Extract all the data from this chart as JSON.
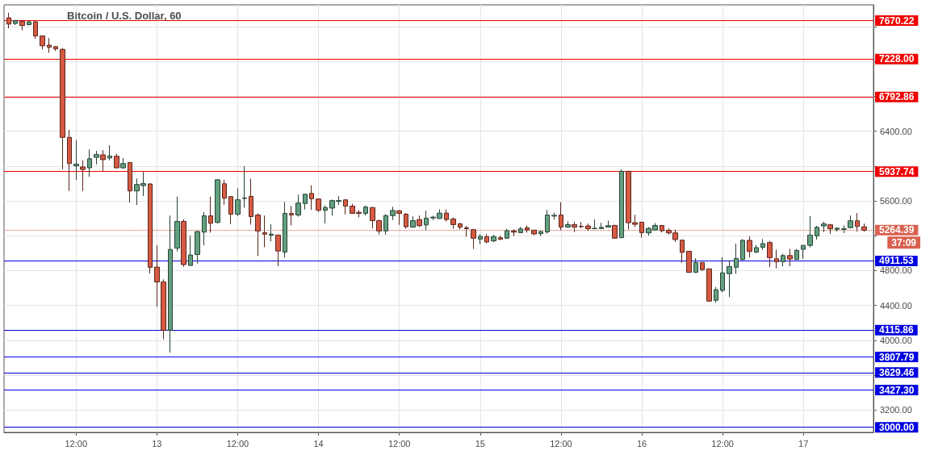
{
  "chart_data": {
    "type": "candlestick",
    "title": "Bitcoin / U.S. Dollar, 60",
    "x": [
      "--03-12T02:00",
      "--03-12T03:00",
      "--03-12T04:00",
      "--03-12T05:00",
      "--03-12T06:00",
      "--03-12T07:00",
      "--03-12T08:00",
      "--03-12T09:00",
      "--03-12T10:00",
      "--03-12T11:00",
      "--03-12T12:00",
      "--03-12T13:00",
      "--03-12T14:00",
      "--03-12T15:00",
      "--03-12T16:00",
      "--03-12T17:00",
      "--03-12T18:00",
      "--03-12T19:00",
      "--03-12T20:00",
      "--03-12T21:00",
      "--03-12T22:00",
      "--03-12T23:00",
      "--03-13T00:00",
      "--03-13T01:00",
      "--03-13T02:00",
      "--03-13T03:00",
      "--03-13T04:00",
      "--03-13T05:00",
      "--03-13T06:00",
      "--03-13T07:00",
      "--03-13T08:00",
      "--03-13T09:00",
      "--03-13T10:00",
      "--03-13T11:00",
      "--03-13T12:00",
      "--03-13T13:00",
      "--03-13T14:00",
      "--03-13T15:00",
      "--03-13T16:00",
      "--03-13T17:00",
      "--03-13T18:00",
      "--03-13T19:00",
      "--03-13T20:00",
      "--03-13T21:00",
      "--03-13T22:00",
      "--03-13T23:00",
      "--03-14T00:00",
      "--03-14T01:00",
      "--03-14T02:00",
      "--03-14T03:00",
      "--03-14T04:00",
      "--03-14T05:00",
      "--03-14T06:00",
      "--03-14T07:00",
      "--03-14T08:00",
      "--03-14T09:00",
      "--03-14T10:00",
      "--03-14T11:00",
      "--03-14T12:00",
      "--03-14T13:00",
      "--03-14T14:00",
      "--03-14T15:00",
      "--03-14T16:00",
      "--03-14T17:00",
      "--03-14T18:00",
      "--03-14T19:00",
      "--03-14T20:00",
      "--03-14T21:00",
      "--03-14T22:00",
      "--03-14T23:00",
      "--03-15T00:00",
      "--03-15T01:00",
      "--03-15T02:00",
      "--03-15T03:00",
      "--03-15T04:00",
      "--03-15T05:00",
      "--03-15T06:00",
      "--03-15T07:00",
      "--03-15T08:00",
      "--03-15T09:00",
      "--03-15T10:00",
      "--03-15T11:00",
      "--03-15T12:00",
      "--03-15T13:00",
      "--03-15T14:00",
      "--03-15T15:00",
      "--03-15T16:00",
      "--03-15T17:00",
      "--03-15T18:00",
      "--03-15T19:00",
      "--03-15T20:00",
      "--03-15T21:00",
      "--03-15T22:00",
      "--03-15T23:00",
      "--03-16T00:00",
      "--03-16T01:00",
      "--03-16T02:00",
      "--03-16T03:00",
      "--03-16T04:00",
      "--03-16T05:00",
      "--03-16T06:00",
      "--03-16T07:00",
      "--03-16T08:00",
      "--03-16T09:00",
      "--03-16T10:00",
      "--03-16T11:00",
      "--03-16T12:00",
      "--03-16T13:00",
      "--03-16T14:00",
      "--03-16T15:00",
      "--03-16T16:00",
      "--03-16T17:00",
      "--03-16T18:00",
      "--03-16T19:00",
      "--03-16T20:00",
      "--03-16T21:00",
      "--03-16T22:00",
      "--03-16T23:00",
      "--03-17T00:00",
      "--03-17T01:00",
      "--03-17T02:00",
      "--03-17T03:00",
      "--03-17T04:00",
      "--03-17T05:00",
      "--03-17T06:00",
      "--03-17T07:00",
      "--03-17T08:00",
      "--03-17T09:00"
    ],
    "ohlc": [
      [
        7703,
        7761,
        7583,
        7631
      ],
      [
        7638,
        7680,
        7620,
        7670
      ],
      [
        7664,
        7670,
        7560,
        7615
      ],
      [
        7625,
        7667,
        7615,
        7657
      ],
      [
        7657,
        7664,
        7463,
        7495
      ],
      [
        7495,
        7500,
        7340,
        7382
      ],
      [
        7389,
        7470,
        7301,
        7366
      ],
      [
        7372,
        7379,
        7324,
        7346
      ],
      [
        7340,
        7356,
        5964,
        6330
      ],
      [
        6330,
        6417,
        5715,
        6029
      ],
      [
        6003,
        6297,
        5841,
        6022
      ],
      [
        5990,
        6067,
        5715,
        5961
      ],
      [
        5980,
        6190,
        5876,
        6084
      ],
      [
        6100,
        6174,
        6019,
        6132
      ],
      [
        6129,
        6184,
        5941,
        6074
      ],
      [
        6093,
        6239,
        6067,
        6116
      ],
      [
        6113,
        6142,
        5974,
        5980
      ],
      [
        5980,
        6093,
        5970,
        6029
      ],
      [
        6042,
        6045,
        5582,
        5715
      ],
      [
        5715,
        5857,
        5553,
        5789
      ],
      [
        5776,
        5932,
        5656,
        5799
      ],
      [
        5795,
        5802,
        4766,
        4837
      ],
      [
        4840,
        5090,
        4384,
        4669
      ],
      [
        4669,
        4700,
        4011,
        4115
      ],
      [
        4115,
        5432,
        3858,
        5043
      ],
      [
        5058,
        5650,
        5022,
        5365
      ],
      [
        5365,
        5389,
        4844,
        4869
      ],
      [
        4859,
        5202,
        4853,
        4979
      ],
      [
        4985,
        5258,
        4881,
        5248
      ],
      [
        5242,
        5472,
        5089,
        5429
      ],
      [
        5429,
        5650,
        5236,
        5343
      ],
      [
        5353,
        5843,
        5340,
        5843
      ],
      [
        5797,
        5843,
        5555,
        5631
      ],
      [
        5650,
        5650,
        5334,
        5448
      ],
      [
        5448,
        5745,
        5426,
        5613
      ],
      [
        5628,
        5999,
        5524,
        5634
      ],
      [
        5653,
        5855,
        5328,
        5420
      ],
      [
        5438,
        5457,
        4967,
        5255
      ],
      [
        5236,
        5432,
        5068,
        5218
      ],
      [
        5208,
        5334,
        5135,
        5218
      ],
      [
        5208,
        5212,
        4850,
        5025
      ],
      [
        5013,
        5588,
        4951,
        5457
      ],
      [
        5457,
        5543,
        5319,
        5438
      ],
      [
        5438,
        5671,
        5420,
        5576
      ],
      [
        5570,
        5677,
        5503,
        5677
      ],
      [
        5686,
        5778,
        5497,
        5625
      ],
      [
        5622,
        5625,
        5472,
        5493
      ],
      [
        5493,
        5549,
        5340,
        5524
      ],
      [
        5518,
        5616,
        5432,
        5604
      ],
      [
        5595,
        5656,
        5555,
        5604
      ],
      [
        5613,
        5613,
        5445,
        5540
      ],
      [
        5540,
        5567,
        5451,
        5457
      ],
      [
        5469,
        5493,
        5411,
        5457
      ],
      [
        5457,
        5546,
        5436,
        5530
      ],
      [
        5524,
        5530,
        5285,
        5374
      ],
      [
        5374,
        5383,
        5215,
        5255
      ],
      [
        5255,
        5448,
        5212,
        5432
      ],
      [
        5432,
        5533,
        5380,
        5490
      ],
      [
        5487,
        5496,
        5325,
        5457
      ],
      [
        5448,
        5460,
        5282,
        5303
      ],
      [
        5300,
        5423,
        5291,
        5374
      ],
      [
        5386,
        5432,
        5300,
        5316
      ],
      [
        5325,
        5488,
        5263,
        5402
      ],
      [
        5405,
        5430,
        5380,
        5414
      ],
      [
        5399,
        5503,
        5396,
        5460
      ],
      [
        5460,
        5503,
        5365,
        5386
      ],
      [
        5392,
        5411,
        5282,
        5328
      ],
      [
        5337,
        5349,
        5273,
        5300
      ],
      [
        5291,
        5313,
        5187,
        5282
      ],
      [
        5270,
        5279,
        5049,
        5172
      ],
      [
        5162,
        5218,
        5104,
        5193
      ],
      [
        5190,
        5218,
        5114,
        5129
      ],
      [
        5141,
        5212,
        5126,
        5190
      ],
      [
        5178,
        5202,
        5151,
        5160
      ],
      [
        5172,
        5279,
        5166,
        5258
      ],
      [
        5255,
        5273,
        5196,
        5242
      ],
      [
        5236,
        5303,
        5230,
        5279
      ],
      [
        5291,
        5319,
        5236,
        5267
      ],
      [
        5264,
        5264,
        5206,
        5221
      ],
      [
        5224,
        5258,
        5196,
        5248
      ],
      [
        5245,
        5497,
        5224,
        5438
      ],
      [
        5426,
        5466,
        5386,
        5435
      ],
      [
        5438,
        5585,
        5264,
        5300
      ],
      [
        5300,
        5365,
        5291,
        5328
      ],
      [
        5328,
        5359,
        5242,
        5300
      ],
      [
        5310,
        5359,
        5288,
        5304
      ],
      [
        5313,
        5340,
        5258,
        5282
      ],
      [
        5282,
        5386,
        5273,
        5285
      ],
      [
        5282,
        5349,
        5279,
        5297
      ],
      [
        5300,
        5374,
        5294,
        5316
      ],
      [
        5319,
        5325,
        5165,
        5172
      ],
      [
        5178,
        5960,
        5178,
        5941
      ],
      [
        5941,
        5941,
        5273,
        5350
      ],
      [
        5350,
        5441,
        5300,
        5331
      ],
      [
        5356,
        5356,
        5178,
        5236
      ],
      [
        5233,
        5300,
        5202,
        5285
      ],
      [
        5266,
        5346,
        5257,
        5318
      ],
      [
        5318,
        5325,
        5239,
        5257
      ],
      [
        5263,
        5285,
        5214,
        5233
      ],
      [
        5233,
        5269,
        5129,
        5156
      ],
      [
        5150,
        5150,
        4890,
        5009
      ],
      [
        5022,
        5025,
        4775,
        4780
      ],
      [
        4780,
        4942,
        4774,
        4893
      ],
      [
        4893,
        4896,
        4798,
        4811
      ],
      [
        4820,
        4820,
        4441,
        4450
      ],
      [
        4459,
        4612,
        4431,
        4581
      ],
      [
        4572,
        4954,
        4551,
        4774
      ],
      [
        4765,
        4918,
        4496,
        4847
      ],
      [
        4838,
        5110,
        4762,
        4939
      ],
      [
        4927,
        5162,
        4918,
        5147
      ],
      [
        5147,
        5193,
        4951,
        5019
      ],
      [
        5012,
        5095,
        5000,
        5064
      ],
      [
        5067,
        5162,
        5037,
        5110
      ],
      [
        5122,
        5141,
        4841,
        4948
      ],
      [
        4936,
        5040,
        4826,
        4902
      ],
      [
        4902,
        4994,
        4850,
        4973
      ],
      [
        4973,
        5049,
        4850,
        4933
      ],
      [
        4927,
        5049,
        4927,
        5031
      ],
      [
        5044,
        5090,
        4935,
        5090
      ],
      [
        5090,
        5428,
        5067,
        5208
      ],
      [
        5198,
        5313,
        5155,
        5297
      ],
      [
        5313,
        5362,
        5241,
        5336
      ],
      [
        5326,
        5336,
        5221,
        5280
      ],
      [
        5274,
        5297,
        5247,
        5287
      ],
      [
        5274,
        5320,
        5231,
        5280
      ],
      [
        5293,
        5432,
        5287,
        5372
      ],
      [
        5372,
        5461,
        5247,
        5306
      ],
      [
        5303,
        5339,
        5247,
        5264
      ]
    ],
    "colors": [
      "#d65a43",
      "#62a07f",
      "#d65a43",
      "#62a07f",
      "#d65a43",
      "#d65a43",
      "#d65a43",
      "#d65a43",
      "#d65a43",
      "#d65a43",
      "#62a07f",
      "#d65a43",
      "#62a07f",
      "#62a07f",
      "#d65a43",
      "#62a07f",
      "#d65a43",
      "#62a07f",
      "#d65a43",
      "#62a07f",
      "#62a07f",
      "#d65a43",
      "#d65a43",
      "#d65a43",
      "#62a07f",
      "#62a07f",
      "#d65a43",
      "#62a07f",
      "#62a07f",
      "#62a07f",
      "#d65a43",
      "#62a07f",
      "#d65a43",
      "#d65a43",
      "#62a07f",
      "#62a07f",
      "#d65a43",
      "#d65a43",
      "#d65a43",
      "#62a07f",
      "#d65a43",
      "#62a07f",
      "#d65a43",
      "#62a07f",
      "#62a07f",
      "#d65a43",
      "#d65a43",
      "#62a07f",
      "#62a07f",
      "#62a07f",
      "#d65a43",
      "#d65a43",
      "#d65a43",
      "#62a07f",
      "#d65a43",
      "#d65a43",
      "#62a07f",
      "#62a07f",
      "#d65a43",
      "#d65a43",
      "#62a07f",
      "#d65a43",
      "#62a07f",
      "#62a07f",
      "#62a07f",
      "#d65a43",
      "#d65a43",
      "#d65a43",
      "#d65a43",
      "#d65a43",
      "#62a07f",
      "#d65a43",
      "#62a07f",
      "#d65a43",
      "#62a07f",
      "#d65a43",
      "#62a07f",
      "#d65a43",
      "#d65a43",
      "#62a07f",
      "#62a07f",
      "#62a07f",
      "#d65a43",
      "#62a07f",
      "#d65a43",
      "#d65a43",
      "#d65a43",
      "#62a07f",
      "#62a07f",
      "#62a07f",
      "#d65a43",
      "#62a07f",
      "#d65a43",
      "#d65a43",
      "#d65a43",
      "#62a07f",
      "#62a07f",
      "#d65a43",
      "#d65a43",
      "#d65a43",
      "#d65a43",
      "#d65a43",
      "#62a07f",
      "#d65a43",
      "#d65a43",
      "#62a07f",
      "#62a07f",
      "#62a07f",
      "#62a07f",
      "#62a07f",
      "#d65a43",
      "#62a07f",
      "#62a07f",
      "#d65a43",
      "#d65a43",
      "#62a07f",
      "#d65a43",
      "#62a07f",
      "#62a07f",
      "#62a07f",
      "#62a07f",
      "#62a07f",
      "#d65a43",
      "#62a07f",
      "#62a07f",
      "#62a07f",
      "#d65a43",
      "#d65a43"
    ],
    "xlim": [
      "--03-12T01:18",
      "--03-17T10:24"
    ],
    "xticks": [
      {
        "value": "--03-12T12:00",
        "label": "12:00"
      },
      {
        "value": "--03-13",
        "label": "13"
      },
      {
        "value": "--03-13T12:00",
        "label": "12:00"
      },
      {
        "value": "--03-14",
        "label": "14"
      },
      {
        "value": "--03-14T12:00",
        "label": "12:00"
      },
      {
        "value": "--03-15",
        "label": "15"
      },
      {
        "value": "--03-15T12:00",
        "label": "12:00"
      },
      {
        "value": "--03-16",
        "label": "16"
      },
      {
        "value": "--03-16T12:00",
        "label": "12:00"
      },
      {
        "value": "--03-17",
        "label": "17"
      }
    ],
    "ylim": [
      2942,
      7852
    ],
    "yticks": [
      {
        "value": 3200,
        "label": "3200.00"
      },
      {
        "value": 3600,
        "label": null
      },
      {
        "value": 4000,
        "label": "4000.00"
      },
      {
        "value": 4400,
        "label": "4400.00"
      },
      {
        "value": 4800,
        "label": "4800.00"
      },
      {
        "value": 5200,
        "label": null
      },
      {
        "value": 5600,
        "label": "5600.00"
      },
      {
        "value": 6000,
        "label": null
      },
      {
        "value": 6400,
        "label": "6400.00"
      },
      {
        "value": 6800,
        "label": null
      },
      {
        "value": 7200,
        "label": null
      },
      {
        "value": 7600,
        "label": null
      }
    ],
    "grid": true,
    "ref_lines": [
      {
        "axis": "y",
        "value": 7670.22,
        "label": "7670.22",
        "color": "#f00000"
      },
      {
        "axis": "y",
        "value": 7228.0,
        "label": "7228.00",
        "color": "#f00000"
      },
      {
        "axis": "y",
        "value": 6792.86,
        "label": "6792.86",
        "color": "#f00000"
      },
      {
        "axis": "y",
        "value": 5937.74,
        "label": "5937.74",
        "color": "#f00000"
      },
      {
        "axis": "y",
        "value": 5264.39,
        "label": "5264.39",
        "color": "#d9604f",
        "line_style": "dotted"
      },
      {
        "axis": "y",
        "value": 4911.53,
        "label": "4911.53",
        "color": "#0000e0"
      },
      {
        "axis": "y",
        "value": 4115.86,
        "label": "4115.86",
        "color": "#0000e0"
      },
      {
        "axis": "y",
        "value": 3807.79,
        "label": "3807.79",
        "color": "#0000e0"
      },
      {
        "axis": "y",
        "value": 3629.46,
        "label": "3629.46",
        "color": "#0000e0"
      },
      {
        "axis": "y",
        "value": 3427.3,
        "label": "3427.30",
        "color": "#0000e0"
      },
      {
        "axis": "y",
        "value": 3000.0,
        "label": "3000.00",
        "color": "#0000e0"
      }
    ],
    "annotations": [
      "37:09"
    ]
  }
}
